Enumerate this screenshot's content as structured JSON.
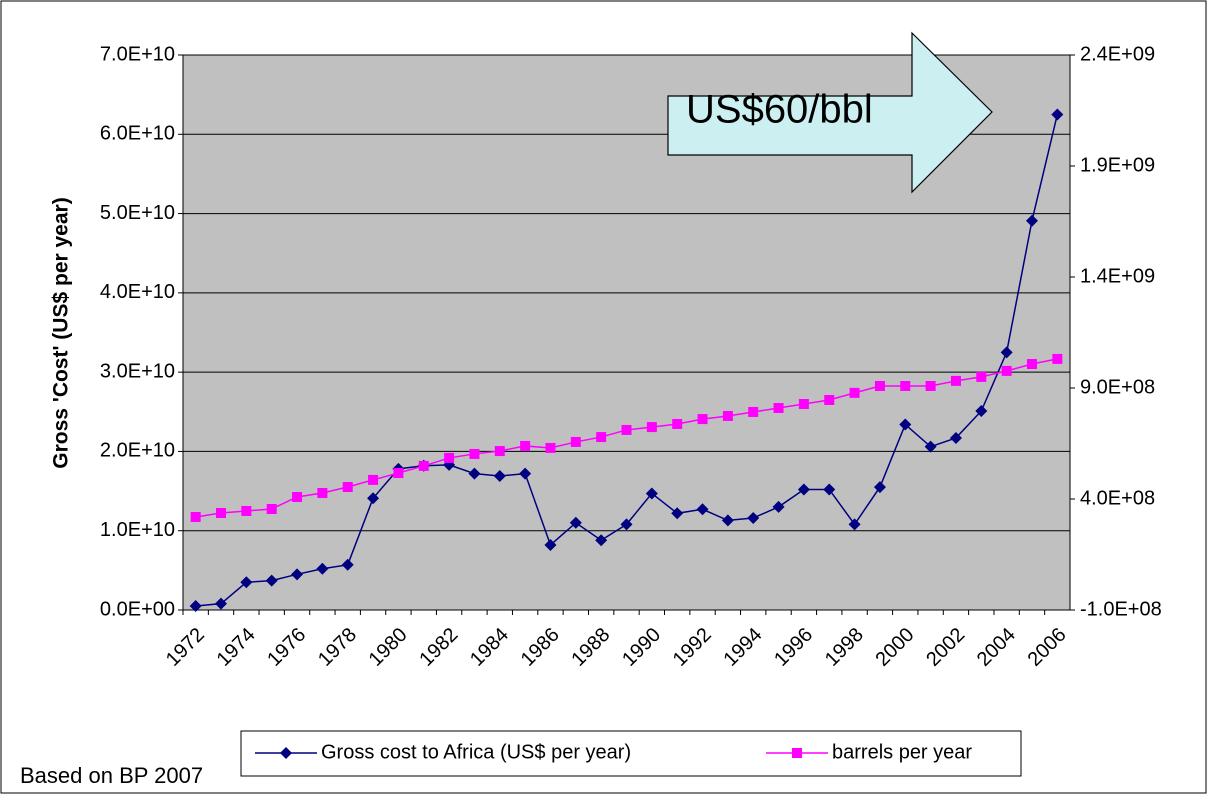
{
  "chart_data": {
    "type": "line",
    "y_label": "Gross 'Cost' (US$ per year)",
    "annotations": [
      "US$60/bbl",
      "Based on BP 2007"
    ],
    "categories": [
      "1972",
      null,
      "1974",
      null,
      "1976",
      null,
      "1978",
      null,
      "1980",
      null,
      "1982",
      null,
      "1984",
      null,
      "1986",
      null,
      "1988",
      null,
      "1990",
      null,
      "1992",
      null,
      "1994",
      null,
      "1996",
      null,
      "1998",
      null,
      "2000",
      null,
      "2002",
      null,
      "2004",
      null,
      "2006"
    ],
    "series": [
      {
        "name": "Gross cost to Africa (US$ per year)",
        "color": "#000080",
        "marker": "diamond",
        "values": [
          500000000,
          800000000,
          3500000000,
          3700000000,
          4500000000,
          5200000000,
          5700000000,
          14100000000,
          17800000000,
          18200000000,
          18300000000,
          17200000000,
          16900000000,
          17200000000,
          8200000000,
          11000000000,
          8800000000,
          10800000000,
          14700000000,
          12200000000,
          12700000000,
          11300000000,
          11600000000,
          13000000000,
          15200000000,
          15200000000,
          10800000000,
          15500000000,
          23400000000,
          20600000000,
          21700000000,
          25100000000,
          32500000000,
          49100000000,
          62500000000
        ]
      },
      {
        "name": "barrels per year",
        "color": "#ff00ff",
        "marker": "square",
        "axis": "y2",
        "values": [
          319000000,
          337000000,
          346000000,
          355000000,
          409000000,
          427000000,
          454000000,
          486000000,
          517000000,
          549000000,
          585000000,
          603000000,
          616000000,
          639000000,
          630000000,
          657000000,
          679000000,
          711000000,
          724000000,
          738000000,
          760000000,
          774000000,
          792000000,
          810000000,
          828000000,
          846000000,
          878000000,
          909000000,
          909000000,
          909000000,
          932000000,
          950000000,
          977000000,
          1008000000,
          1031000000
        ]
      }
    ],
    "ylim": [
      0,
      70000000000
    ],
    "yticks": [
      {
        "value": 0,
        "label": "0.0E+00"
      },
      {
        "value": 10000000000,
        "label": "1.0E+10"
      },
      {
        "value": 20000000000,
        "label": "2.0E+10"
      },
      {
        "value": 30000000000,
        "label": "3.0E+10"
      },
      {
        "value": 40000000000,
        "label": "4.0E+10"
      },
      {
        "value": 50000000000,
        "label": "5.0E+10"
      },
      {
        "value": 60000000000,
        "label": "6.0E+10"
      },
      {
        "value": 70000000000,
        "label": "7.0E+10"
      }
    ],
    "y2lim": [
      -100000000,
      2400000000
    ],
    "y2ticks": [
      {
        "value": -100000000,
        "label": "-1.0E+08"
      },
      {
        "value": 400000000,
        "label": "4.0E+08"
      },
      {
        "value": 900000000,
        "label": "9.0E+08"
      },
      {
        "value": 1400000000,
        "label": "1.4E+09"
      },
      {
        "value": 1900000000,
        "label": "1.9E+09"
      },
      {
        "value": 2400000000,
        "label": "2.4E+09"
      }
    ],
    "grid": true,
    "plot_background": "#c0c0c0",
    "legend": "bottom"
  }
}
